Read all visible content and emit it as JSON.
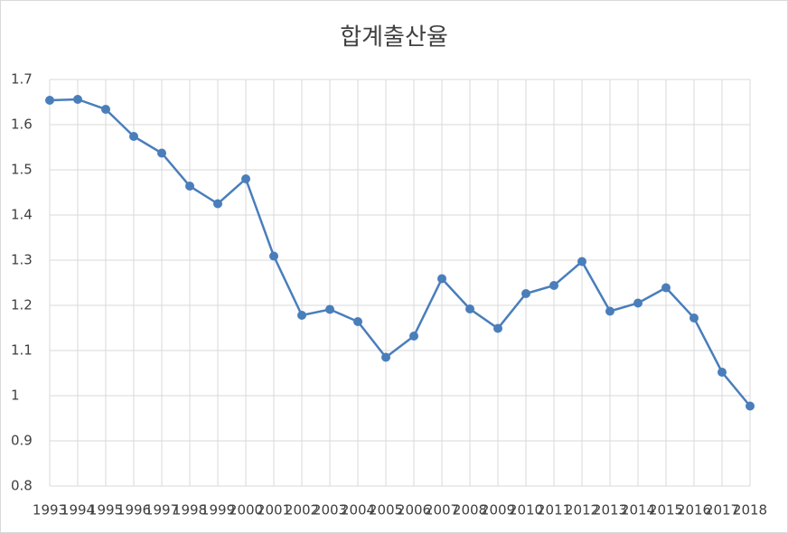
{
  "chart_data": {
    "type": "line",
    "title": "합계출산율",
    "categories": [
      "1993",
      "1994",
      "1995",
      "1996",
      "1997",
      "1998",
      "1999",
      "2000",
      "2001",
      "2002",
      "2003",
      "2004",
      "2005",
      "2006",
      "2007",
      "2008",
      "2009",
      "2010",
      "2011",
      "2012",
      "2013",
      "2014",
      "2015",
      "2016",
      "2017",
      "2018"
    ],
    "series": [
      {
        "color": "#4a7ebb",
        "values": [
          1.654,
          1.656,
          1.634,
          1.574,
          1.537,
          1.464,
          1.425,
          1.48,
          1.309,
          1.178,
          1.191,
          1.164,
          1.085,
          1.132,
          1.259,
          1.192,
          1.149,
          1.226,
          1.244,
          1.297,
          1.187,
          1.205,
          1.239,
          1.172,
          1.052,
          0.977
        ]
      }
    ],
    "ylim": [
      0.8,
      1.7
    ],
    "yticks": [
      0.8,
      0.9,
      1,
      1.1,
      1.2,
      1.3,
      1.4,
      1.5,
      1.6,
      1.7
    ],
    "grid": true
  }
}
